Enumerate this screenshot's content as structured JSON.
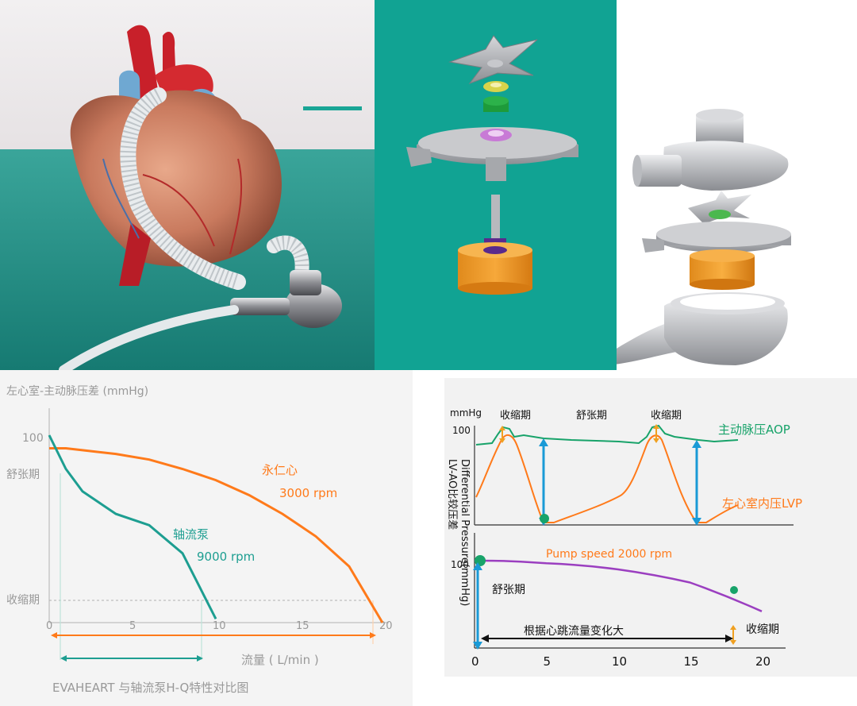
{
  "colors": {
    "teal": "#1d9e91",
    "orange": "#ff7a1a",
    "green_line": "#18a36a",
    "blue_arrow": "#1a9ad6",
    "purple": "#9b3fc0",
    "grey_text": "#888888"
  },
  "hq_chart": {
    "ylabel": "左心室-主动脉压差 (mmHg)",
    "y_tick_100": "100",
    "y_label_diastole": "舒张期",
    "y_label_systole": "收缩期",
    "x_ticks": [
      "0",
      "5",
      "10",
      "15",
      "20"
    ],
    "xlabel": "流量 ( L/min )",
    "caption": "EVAHEART  与轴流泵H-Q特性对比图",
    "series_orange_name": "永仁心",
    "series_orange_rpm": "3000 rpm",
    "series_teal_name": "轴流泵",
    "series_teal_rpm": "9000 rpm"
  },
  "chart_data": [
    {
      "type": "line",
      "x": [
        0,
        1,
        2,
        4,
        6,
        8,
        10,
        12,
        14,
        16,
        18,
        20
      ],
      "series": [
        {
          "name": "永仁心",
          "values": [
            93,
            93,
            92,
            90,
            87,
            82,
            76,
            68,
            58,
            46,
            30,
            0
          ]
        },
        {
          "name": "轴流泵",
          "values": [
            100,
            82,
            70,
            58,
            52,
            37,
            2,
            null,
            null,
            null,
            null,
            null
          ]
        }
      ],
      "ylabel": "左心室-主动脉压差 (mmHg)",
      "xlabel": "流量 ( L/min )",
      "xlim": [
        0,
        20
      ],
      "ylim": [
        0,
        100
      ]
    },
    {
      "type": "line",
      "x": [
        0,
        5,
        10,
        15,
        20
      ],
      "series": [
        {
          "name": "Pump speed 2000 rpm",
          "values": [
            100,
            97,
            90,
            75,
            42
          ]
        }
      ],
      "ylabel": "LV-AO比较压差 Differential Pressure(mmHg)",
      "xlim": [
        0,
        20
      ],
      "ylim": [
        0,
        100
      ]
    }
  ],
  "pressure_chart": {
    "unit": "mmHg",
    "tick_100_top": "100",
    "tick_100_bottom": "100",
    "phase_systole_1": "收缩期",
    "phase_diastole": "舒张期",
    "phase_systole_2": "收缩期",
    "aop_label": "主动脉压AOP",
    "lvp_label": "左心室内压LVP",
    "ylabel_cn": "LV-AO比较压差",
    "ylabel_en": "Differential Pressure(mmHg)",
    "pump_speed": "Pump speed 2000 rpm",
    "diastole_bottom": "舒张期",
    "systole_bottom": "收缩期",
    "flow_change": "根据心跳流量变化大",
    "x_ticks": [
      "0",
      "5",
      "10",
      "15",
      "20"
    ]
  }
}
